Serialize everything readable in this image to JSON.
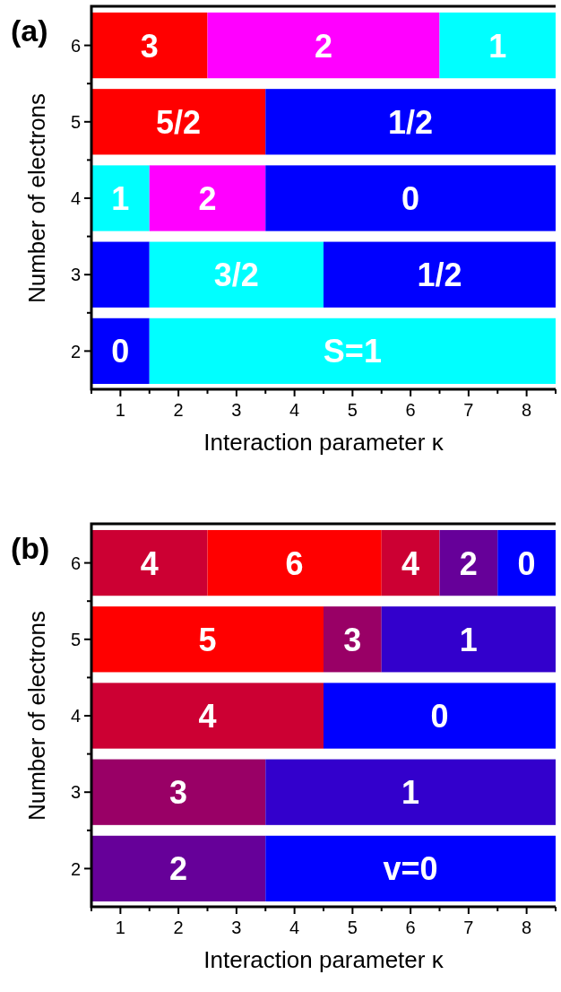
{
  "chart_data": [
    {
      "type": "bar",
      "orientation": "horizontal",
      "title": "(a)",
      "xlabel": "Interaction parameter κ",
      "ylabel": "Number of electrons",
      "categories": [
        "6",
        "5",
        "4",
        "3",
        "2"
      ],
      "xlim": [
        0.5,
        8.5
      ],
      "xticks": [
        {
          "value": 0.5,
          "label": null
        },
        1,
        {
          "value": 1.5,
          "label": null
        },
        2,
        {
          "value": 2.5,
          "label": null
        },
        3,
        {
          "value": 3.5,
          "label": null
        },
        4,
        {
          "value": 4.5,
          "label": null
        },
        5,
        {
          "value": 5.5,
          "label": null
        },
        6,
        {
          "value": 6.5,
          "label": null
        },
        7,
        {
          "value": 7.5,
          "label": null
        },
        8,
        {
          "value": 8.5,
          "label": null
        }
      ],
      "series": [
        {
          "base": [
            0.5,
            0.5,
            0.5,
            0.5,
            0.5
          ],
          "values": [
            2,
            3,
            1,
            1,
            1
          ],
          "colors": [
            "#ff0000",
            "#ff0000",
            "#00ffff",
            "#0000ff",
            "#0000ff"
          ]
        },
        {
          "base": [
            2.5,
            3.5,
            1.5,
            1.5,
            1.5
          ],
          "values": [
            4,
            5,
            2,
            3,
            7
          ],
          "colors": [
            "#ff00ff",
            "#0000ff",
            "#ff00ff",
            "#00ffff",
            "#00ffff"
          ]
        },
        {
          "base": [
            6.5,
            null,
            3.5,
            4.5,
            null
          ],
          "values": [
            2,
            null,
            5,
            4,
            null
          ],
          "colors": [
            "#00ffff",
            null,
            "#0000ff",
            "#0000ff",
            null
          ]
        }
      ],
      "annotations": [
        {
          "text": "3",
          "x": 1.5,
          "y": "6"
        },
        {
          "text": "2",
          "x": 4.5,
          "y": "6"
        },
        {
          "text": "1",
          "x": 7.5,
          "y": "6"
        },
        {
          "text": "5/2",
          "x": 2,
          "y": "5"
        },
        {
          "text": "1/2",
          "x": 6,
          "y": "5"
        },
        {
          "text": "1",
          "x": 1,
          "y": "4"
        },
        {
          "text": "2",
          "x": 2.5,
          "y": "4"
        },
        {
          "text": "0",
          "x": 6,
          "y": "4"
        },
        {
          "text": "3/2",
          "x": 3,
          "y": "3"
        },
        {
          "text": "1/2",
          "x": 6.5,
          "y": "3"
        },
        {
          "text": "0",
          "x": 1,
          "y": "2"
        },
        {
          "text": "S=1",
          "x": 5,
          "y": "2"
        }
      ]
    },
    {
      "type": "bar",
      "orientation": "horizontal",
      "title": "(b)",
      "xlabel": "Interaction parameter κ",
      "ylabel": "Number of electrons",
      "categories": [
        "6",
        "5",
        "4",
        "3",
        "2"
      ],
      "xlim": [
        0.5,
        8.5
      ],
      "xticks": [
        {
          "value": 0.5,
          "label": null
        },
        1,
        {
          "value": 1.5,
          "label": null
        },
        2,
        {
          "value": 2.5,
          "label": null
        },
        3,
        {
          "value": 3.5,
          "label": null
        },
        4,
        {
          "value": 4.5,
          "label": null
        },
        5,
        {
          "value": 5.5,
          "label": null
        },
        6,
        {
          "value": 6.5,
          "label": null
        },
        7,
        {
          "value": 7.5,
          "label": null
        },
        8,
        {
          "value": 8.5,
          "label": null
        }
      ],
      "series": [
        {
          "base": [
            0.5,
            0.5,
            0.5,
            0.5,
            0.5
          ],
          "values": [
            2,
            4,
            4,
            3,
            3
          ],
          "colors": [
            "#cc0033",
            "#ff0000",
            "#cc0033",
            "#990066",
            "#660099"
          ]
        },
        {
          "base": [
            2.5,
            4.5,
            4.5,
            3.5,
            3.5
          ],
          "values": [
            3,
            1,
            4,
            5,
            5
          ],
          "colors": [
            "#ff0000",
            "#990066",
            "#0000ff",
            "#3300cc",
            "#0000ff"
          ]
        },
        {
          "base": [
            5.5,
            5.5,
            null,
            null,
            null
          ],
          "values": [
            1,
            3,
            null,
            null,
            null
          ],
          "colors": [
            "#cc0033",
            "#3300cc",
            null,
            null,
            null
          ]
        },
        {
          "base": [
            6.5,
            null,
            null,
            null,
            null
          ],
          "values": [
            1,
            null,
            null,
            null,
            null
          ],
          "colors": [
            "#660099",
            null,
            null,
            null,
            null
          ]
        },
        {
          "base": [
            7.5,
            null,
            null,
            null,
            null
          ],
          "values": [
            1,
            null,
            null,
            null,
            null
          ],
          "colors": [
            "#0000ff",
            null,
            null,
            null,
            null
          ]
        }
      ],
      "annotations": [
        {
          "text": "4",
          "x": 1.5,
          "y": "6"
        },
        {
          "text": "6",
          "x": 4,
          "y": "6"
        },
        {
          "text": "4",
          "x": 6,
          "y": "6"
        },
        {
          "text": "2",
          "x": 7,
          "y": "6"
        },
        {
          "text": "0",
          "x": 8,
          "y": "6"
        },
        {
          "text": "5",
          "x": 2.5,
          "y": "5"
        },
        {
          "text": "3",
          "x": 5,
          "y": "5"
        },
        {
          "text": "1",
          "x": 7,
          "y": "5"
        },
        {
          "text": "4",
          "x": 2.5,
          "y": "4"
        },
        {
          "text": "0",
          "x": 6.5,
          "y": "4"
        },
        {
          "text": "3",
          "x": 2,
          "y": "3"
        },
        {
          "text": "1",
          "x": 6,
          "y": "3"
        },
        {
          "text": "2",
          "x": 2,
          "y": "2"
        },
        {
          "text": "v=0",
          "x": 6,
          "y": "2"
        }
      ]
    }
  ]
}
